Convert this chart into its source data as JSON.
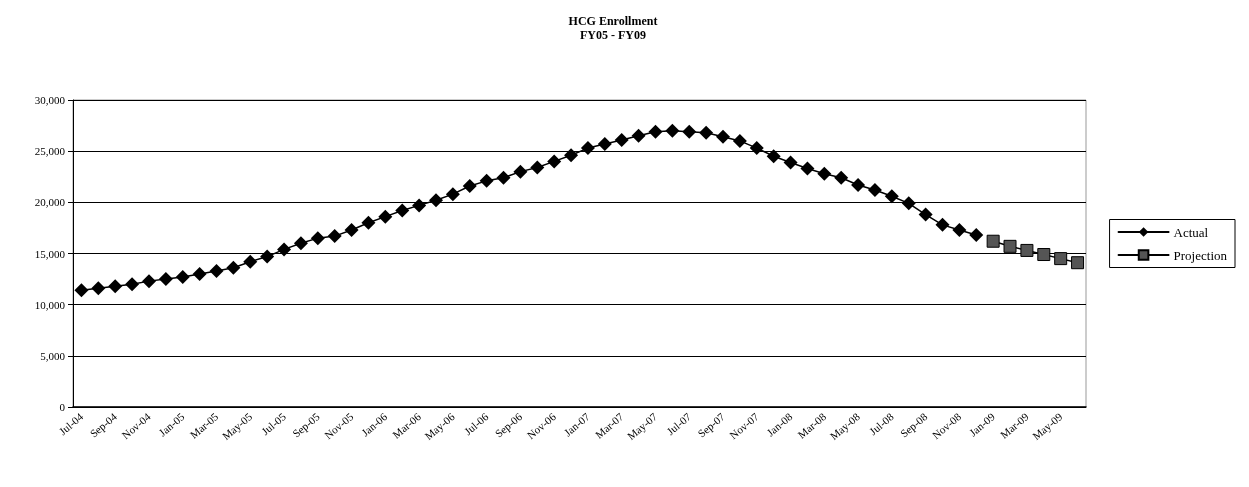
{
  "chart_data": {
    "type": "line",
    "title": "HCG Enrollment",
    "subtitle": "FY05 - FY09",
    "categories": [
      "Jul-04",
      null,
      "Sep-04",
      null,
      "Nov-04",
      null,
      "Jan-05",
      null,
      "Mar-05",
      null,
      "May-05",
      null,
      "Jul-05",
      null,
      "Sep-05",
      null,
      "Nov-05",
      null,
      "Jan-06",
      null,
      "Mar-06",
      null,
      "May-06",
      null,
      "Jul-06",
      null,
      "Sep-06",
      null,
      "Nov-06",
      null,
      "Jan-07",
      null,
      "Mar-07",
      null,
      "May-07",
      null,
      "Jul-07",
      null,
      "Sep-07",
      null,
      "Nov-07",
      null,
      "Jan-08",
      null,
      "Mar-08",
      null,
      "May-08",
      null,
      "Jul-08",
      null,
      "Sep-08",
      null,
      "Nov-08",
      null,
      "Jan-09",
      null,
      "Mar-09",
      null,
      "May-09",
      null
    ],
    "series": [
      {
        "name": "Actual",
        "color": "#000000",
        "marker": "diamond",
        "values": [
          11400,
          11600,
          11800,
          12000,
          12300,
          12500,
          12700,
          13000,
          13300,
          13600,
          14200,
          14700,
          15400,
          16000,
          16500,
          16700,
          17300,
          18000,
          18600,
          19200,
          19700,
          20200,
          20800,
          21600,
          22100,
          22400,
          23000,
          23400,
          24000,
          24600,
          25300,
          25700,
          26100,
          26500,
          26900,
          27000,
          26900,
          26800,
          26400,
          26000,
          25300,
          24500,
          23900,
          23300,
          22800,
          22400,
          21700,
          21200,
          20600,
          19900,
          18800,
          17800,
          17300,
          16800,
          null,
          null,
          null,
          null,
          null,
          null
        ]
      },
      {
        "name": "Projection",
        "color": "#555555",
        "marker": "square",
        "values": [
          null,
          null,
          null,
          null,
          null,
          null,
          null,
          null,
          null,
          null,
          null,
          null,
          null,
          null,
          null,
          null,
          null,
          null,
          null,
          null,
          null,
          null,
          null,
          null,
          null,
          null,
          null,
          null,
          null,
          null,
          null,
          null,
          null,
          null,
          null,
          null,
          null,
          null,
          null,
          null,
          null,
          null,
          null,
          null,
          null,
          null,
          null,
          null,
          null,
          null,
          null,
          null,
          null,
          null,
          16200,
          15700,
          15300,
          14900,
          14500,
          14100
        ]
      }
    ],
    "ylim": [
      0,
      30000
    ],
    "yticks": [
      {
        "value": 0,
        "label": "0"
      },
      {
        "value": 5000,
        "label": "5,000"
      },
      {
        "value": 10000,
        "label": "10,000"
      },
      {
        "value": 15000,
        "label": "15,000"
      },
      {
        "value": 20000,
        "label": "20,000"
      },
      {
        "value": 25000,
        "label": "25,000"
      },
      {
        "value": 30000,
        "label": "30,000"
      }
    ],
    "grid": "y",
    "legend": "right"
  }
}
